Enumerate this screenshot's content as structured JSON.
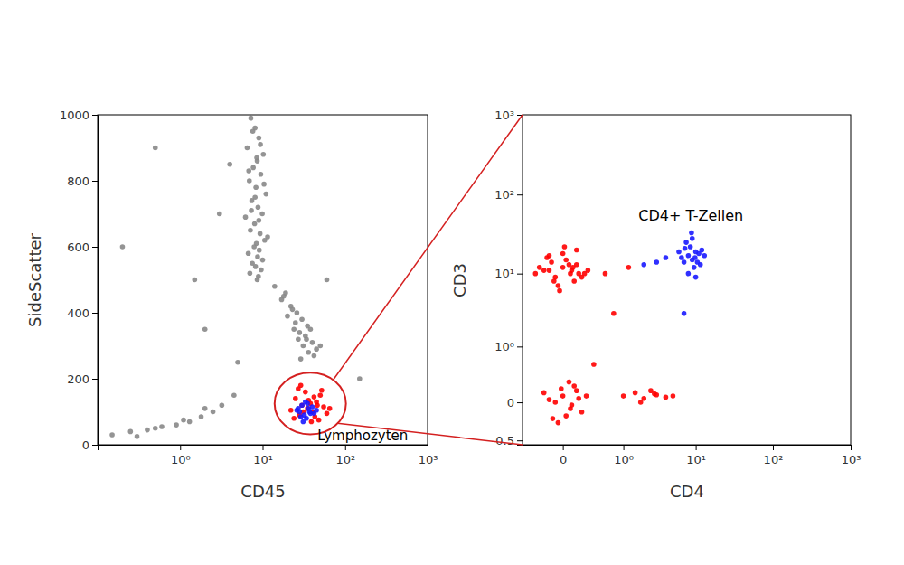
{
  "chart_data": [
    {
      "type": "scatter",
      "xlabel": "CD45",
      "ylabel": "SideScatter",
      "log": "x",
      "xlim": [
        0.1,
        1000
      ],
      "ylim": [
        0,
        1000
      ],
      "xticks": [
        {
          "value": 1,
          "label": "10⁰"
        },
        {
          "value": 10,
          "label": "10¹"
        },
        {
          "value": 100,
          "label": "10²"
        },
        {
          "value": 1000,
          "label": "10³"
        }
      ],
      "yticks": [
        0,
        200,
        400,
        600,
        800,
        1000
      ],
      "annotations": [
        {
          "text": "Lymphozyten"
        }
      ],
      "series": [
        {
          "color": "#888888",
          "x": [
            7.2,
            8.1,
            9.0,
            6.5,
            10.2,
            8.6,
            7.7,
            9.5,
            6.9,
            8.3,
            11.0,
            7.4,
            8.8,
            9.9,
            6.2,
            8.0,
            7.1,
            9.3,
            10.6,
            8.4,
            7.9,
            9.1,
            6.7,
            8.7,
            10.0,
            7.5,
            8.2,
            9.6,
            7.0,
            8.9,
            7.6,
            9.4,
            8.5,
            6.8,
            10.4,
            8.1,
            7.3,
            9.0,
            11.5,
            8.6,
            14,
            18,
            22,
            26,
            30,
            35,
            20,
            25,
            28,
            33,
            40,
            45,
            17,
            23,
            38,
            50,
            27,
            31,
            36,
            42,
            19,
            24,
            29,
            34,
            0.15,
            0.25,
            0.4,
            0.6,
            0.9,
            1.3,
            1.8,
            2.5,
            3.2,
            0.3,
            0.5,
            1.1,
            2.0,
            4.5,
            0.5,
            3,
            2,
            0.2,
            60,
            150,
            5,
            1.5,
            4
          ],
          "values": [
            990,
            960,
            930,
            900,
            880,
            860,
            840,
            820,
            800,
            780,
            760,
            740,
            720,
            700,
            690,
            670,
            650,
            640,
            620,
            610,
            600,
            590,
            580,
            570,
            560,
            550,
            540,
            530,
            520,
            510,
            950,
            910,
            870,
            830,
            790,
            750,
            710,
            680,
            630,
            500,
            480,
            450,
            420,
            400,
            380,
            360,
            390,
            370,
            340,
            330,
            310,
            290,
            440,
            410,
            350,
            300,
            320,
            300,
            280,
            270,
            460,
            350,
            260,
            320,
            30,
            40,
            45,
            55,
            60,
            70,
            85,
            100,
            120,
            25,
            50,
            75,
            110,
            150,
            900,
            700,
            350,
            600,
            500,
            200,
            250,
            500,
            850
          ]
        },
        {
          "color": "#ff0000",
          "x": [
            25,
            30,
            35,
            40,
            45,
            50,
            28,
            33,
            38,
            43,
            55,
            22,
            60,
            27,
            48,
            36,
            31,
            42,
            65,
            24,
            52,
            39,
            29,
            46
          ],
          "values": [
            140,
            120,
            110,
            100,
            130,
            150,
            90,
            160,
            125,
            85,
            115,
            105,
            95,
            170,
            75,
            135,
            100,
            145,
            110,
            80,
            165,
            70,
            180,
            120
          ]
        },
        {
          "color": "#1a1aff",
          "x": [
            28,
            32,
            36,
            30,
            34,
            38,
            26,
            40,
            33,
            29,
            37,
            31,
            35,
            42,
            27,
            45
          ],
          "values": [
            100,
            90,
            110,
            120,
            80,
            95,
            105,
            115,
            130,
            85,
            100,
            70,
            125,
            95,
            110,
            105
          ]
        }
      ]
    },
    {
      "type": "scatter",
      "xlabel": "CD4",
      "ylabel": "CD3",
      "log": true,
      "xlim": [
        -0.46,
        1000
      ],
      "ylim": [
        -0.6,
        1000
      ],
      "xticks": [
        0,
        {
          "value": 1,
          "label": "10⁰"
        },
        {
          "value": 10,
          "label": "10¹"
        },
        {
          "value": 100,
          "label": "10²"
        },
        {
          "value": 1000,
          "label": "10³"
        }
      ],
      "yticks": [
        -0.5,
        0,
        {
          "value": 1,
          "label": "10⁰"
        },
        {
          "value": 10,
          "label": "10¹"
        },
        {
          "value": 100,
          "label": "10²"
        },
        {
          "value": 1000,
          "label": "10³"
        }
      ],
      "annotations": [
        {
          "text": "CD4+ T-Zellen"
        }
      ],
      "series": [
        {
          "color": "#ff0000",
          "x": [
            -0.1,
            0,
            0.05,
            -0.05,
            0.1,
            -0.15,
            0.02,
            0.08,
            -0.08,
            0.12,
            -0.2,
            0.15,
            0,
            -0.03,
            0.06,
            -0.12,
            0.18,
            0.04,
            -0.06,
            0.1,
            -0.25,
            0.22,
            -0.02,
            0.07,
            -0.1,
            0.01,
            -0.05,
            0,
            0.05,
            0.1,
            -0.1,
            0.02,
            0.08,
            -0.03,
            0.12,
            -0.15,
            0.04,
            0.15,
            -0.07,
            0.2,
            0.06,
            -0.01,
            1.0,
            1.5,
            2.0,
            2.5,
            3.0,
            4.0,
            1.8,
            2.8,
            5.0,
            0.5,
            1.2,
            0.3,
            0.7
          ],
          "values": [
            11,
            12,
            10,
            9,
            13,
            11,
            15,
            8,
            14,
            10,
            12,
            9,
            18,
            7,
            11,
            16,
            10,
            13,
            8,
            20,
            10,
            11,
            6,
            12,
            17,
            22,
            0,
            0.05,
            -0.05,
            0.1,
            0.02,
            -0.12,
            0.15,
            -0.2,
            0.03,
            0.08,
            0.2,
            -0.08,
            -0.15,
            0.05,
            -0.02,
            0.12,
            0.05,
            0.08,
            0.03,
            0.1,
            0.06,
            0.04,
            0.0,
            0.07,
            0.05,
            10,
            12,
            0.5,
            3
          ]
        },
        {
          "color": "#1a1aff",
          "x": [
            8,
            9,
            10,
            7,
            11,
            8.5,
            9.5,
            6.5,
            12,
            7.5,
            10.5,
            9,
            8,
            13,
            6,
            11.5,
            8.8,
            9.8,
            7.2,
            10,
            2,
            3,
            4,
            7
          ],
          "values": [
            17,
            15,
            19,
            14,
            18,
            22,
            12,
            16,
            20,
            25,
            14,
            28,
            10,
            17,
            19,
            13,
            33,
            16,
            21,
            9,
            13,
            14,
            16,
            3
          ]
        }
      ]
    }
  ]
}
